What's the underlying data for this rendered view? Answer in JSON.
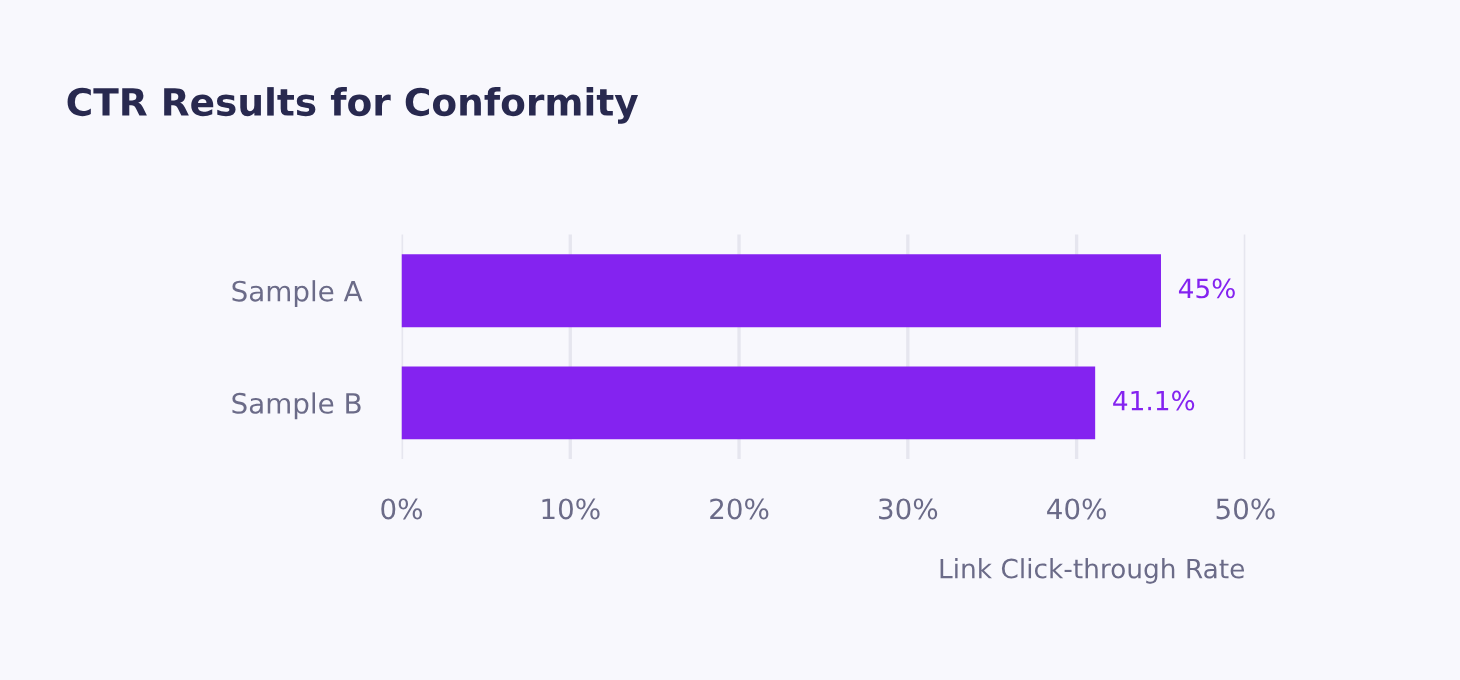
{
  "chart_data": {
    "type": "bar",
    "orientation": "horizontal",
    "title": "CTR Results for Conformity",
    "xlabel": "Link Click-through Rate",
    "categories": [
      "Sample A",
      "Sample B"
    ],
    "values": [
      45,
      41.1
    ],
    "value_labels": [
      "45%",
      "41.1%"
    ],
    "color": "#8423f0",
    "xlim": [
      0,
      50
    ],
    "xticks": [
      {
        "value": 0,
        "label": "0%"
      },
      {
        "value": 10,
        "label": "10%"
      },
      {
        "value": 20,
        "label": "20%"
      },
      {
        "value": 30,
        "label": "30%"
      },
      {
        "value": 40,
        "label": "40%"
      },
      {
        "value": 50,
        "label": "50%"
      }
    ],
    "grid": "x",
    "legend": false
  }
}
